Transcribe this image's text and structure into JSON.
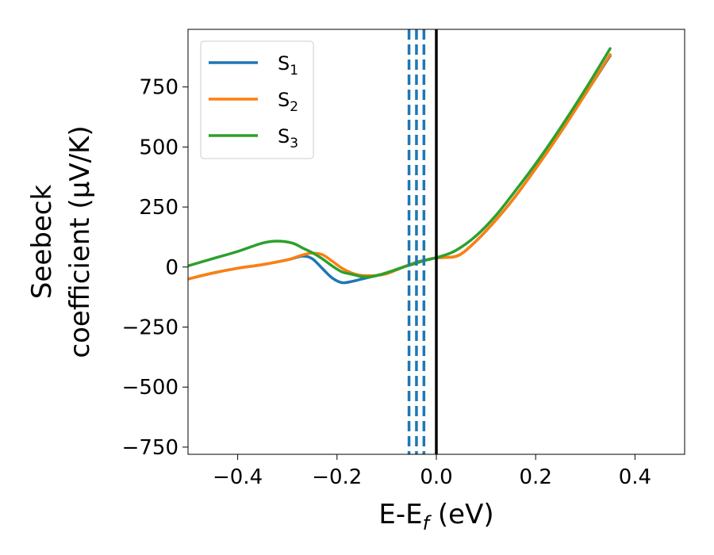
{
  "chart_data": {
    "type": "line",
    "xlabel": "E-E",
    "xlabel_sub": "f",
    "xlabel_unit": " (eV)",
    "ylabel_line1": "Seebeck",
    "ylabel_line2": "coefficient  (μV/K)",
    "xlim": [
      -0.5,
      0.5
    ],
    "ylim": [
      -780,
      990
    ],
    "xticks": [
      -0.4,
      -0.2,
      0.0,
      0.2,
      0.4
    ],
    "xtick_labels": [
      "−0.4",
      "−0.2",
      "0.0",
      "0.2",
      "0.4"
    ],
    "yticks": [
      -750,
      -500,
      -250,
      0,
      250,
      500,
      750
    ],
    "ytick_labels": [
      "−750",
      "−500",
      "−250",
      "0",
      "250",
      "500",
      "750"
    ],
    "grid": false,
    "legend_position": "top-left",
    "series": [
      {
        "name": "S",
        "name_sub": "1",
        "color": "#1f77b4",
        "x": [
          -0.5,
          -0.45,
          -0.4,
          -0.35,
          -0.3,
          -0.27,
          -0.25,
          -0.23,
          -0.21,
          -0.19,
          -0.17,
          -0.15,
          -0.12,
          -0.1,
          -0.08,
          -0.06,
          -0.04,
          -0.02,
          0.0,
          0.02,
          0.04,
          0.06,
          0.1,
          0.15,
          0.2,
          0.25,
          0.3,
          0.35
        ],
        "y": [
          -50,
          -25,
          -5,
          10,
          30,
          45,
          35,
          -5,
          -45,
          -65,
          -60,
          -50,
          -35,
          -25,
          -10,
          5,
          20,
          30,
          38,
          40,
          45,
          70,
          150,
          270,
          410,
          560,
          720,
          880
        ]
      },
      {
        "name": "S",
        "name_sub": "2",
        "color": "#ff7f0e",
        "x": [
          -0.5,
          -0.45,
          -0.4,
          -0.35,
          -0.3,
          -0.27,
          -0.25,
          -0.23,
          -0.21,
          -0.19,
          -0.17,
          -0.15,
          -0.12,
          -0.1,
          -0.08,
          -0.06,
          -0.04,
          -0.02,
          0.0,
          0.02,
          0.04,
          0.06,
          0.1,
          0.15,
          0.2,
          0.25,
          0.3,
          0.35
        ],
        "y": [
          -50,
          -25,
          -5,
          10,
          30,
          50,
          58,
          52,
          25,
          -5,
          -25,
          -35,
          -35,
          -28,
          -12,
          5,
          18,
          30,
          38,
          40,
          45,
          70,
          150,
          270,
          410,
          560,
          720,
          885
        ]
      },
      {
        "name": "S",
        "name_sub": "3",
        "color": "#2ca02c",
        "x": [
          -0.5,
          -0.45,
          -0.4,
          -0.35,
          -0.32,
          -0.29,
          -0.27,
          -0.25,
          -0.23,
          -0.21,
          -0.19,
          -0.17,
          -0.15,
          -0.13,
          -0.11,
          -0.09,
          -0.07,
          -0.05,
          -0.03,
          -0.01,
          0.01,
          0.04,
          0.08,
          0.12,
          0.16,
          0.2,
          0.25,
          0.3,
          0.35
        ],
        "y": [
          5,
          35,
          65,
          100,
          108,
          100,
          80,
          60,
          35,
          5,
          -20,
          -30,
          -40,
          -40,
          -30,
          -17,
          -3,
          10,
          23,
          34,
          45,
          70,
          130,
          215,
          320,
          430,
          580,
          740,
          910
        ]
      }
    ],
    "vlines": [
      {
        "x": -0.055,
        "color": "#1f77b4",
        "style": "dashed"
      },
      {
        "x": -0.04,
        "color": "#1f77b4",
        "style": "dashed"
      },
      {
        "x": -0.025,
        "color": "#1f77b4",
        "style": "dashed"
      },
      {
        "x": 0.0,
        "color": "#000000",
        "style": "solid"
      }
    ]
  }
}
